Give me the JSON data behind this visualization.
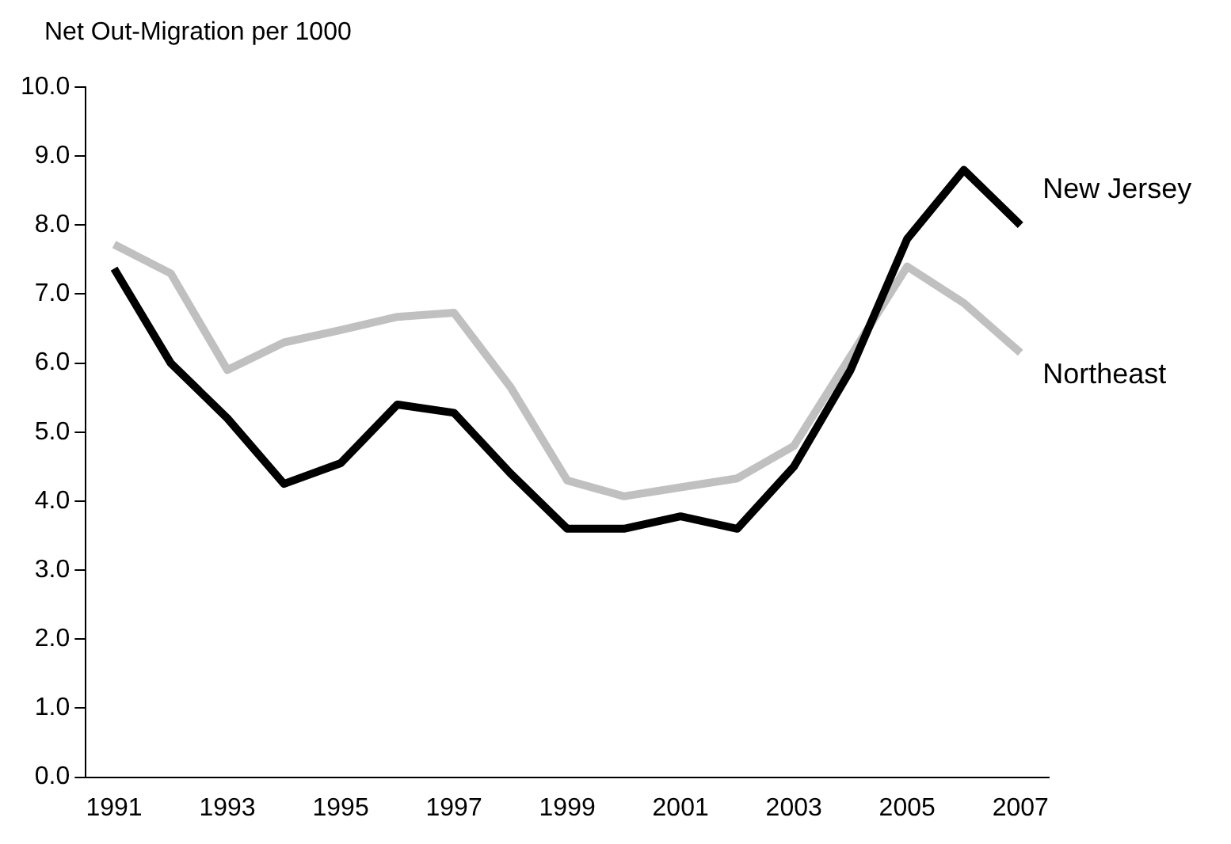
{
  "chart_data": {
    "type": "line",
    "ylabel": "Net Out-Migration per 1000",
    "categories": [
      "1991",
      null,
      "1993",
      null,
      "1995",
      null,
      "1997",
      null,
      "1999",
      null,
      "2001",
      null,
      "2003",
      null,
      "2005",
      null,
      "2007"
    ],
    "series": [
      {
        "name": "New Jersey",
        "color": "#000000",
        "values": [
          7.37,
          6.0,
          5.2,
          4.25,
          4.55,
          5.4,
          5.28,
          4.4,
          3.6,
          3.6,
          3.78,
          3.6,
          4.5,
          5.9,
          7.8,
          8.8,
          8.0
        ]
      },
      {
        "name": "Northeast",
        "color": "#c0c0c0",
        "values": [
          7.72,
          7.3,
          5.9,
          6.3,
          6.48,
          6.67,
          6.73,
          5.65,
          4.3,
          4.07,
          4.2,
          4.33,
          4.8,
          6.1,
          7.4,
          6.87,
          6.15
        ]
      }
    ],
    "ylim": [
      0,
      10
    ],
    "yticks": [
      {
        "value": 0,
        "label": "0.0"
      },
      {
        "value": 1,
        "label": "1.0"
      },
      {
        "value": 2,
        "label": "2.0"
      },
      {
        "value": 3,
        "label": "3.0"
      },
      {
        "value": 4,
        "label": "4.0"
      },
      {
        "value": 5,
        "label": "5.0"
      },
      {
        "value": 6,
        "label": "6.0"
      },
      {
        "value": 7,
        "label": "7.0"
      },
      {
        "value": 8,
        "label": "8.0"
      },
      {
        "value": 9,
        "label": "9.0"
      },
      {
        "value": 10,
        "label": "10.0"
      }
    ],
    "grid": false,
    "legend": false,
    "marker": "none",
    "line_style": "solid"
  }
}
